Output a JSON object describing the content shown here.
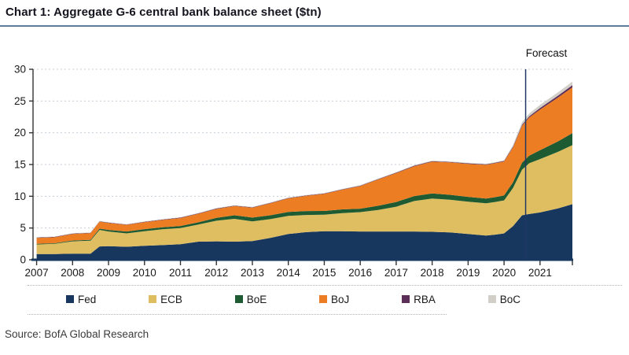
{
  "source": {
    "text": "Source: BofA Global Research"
  },
  "colors": {
    "title_rule": "#5f7d9e",
    "grid": "#c7ced6",
    "y_axis": "#333333",
    "x_axis": "#17375E",
    "tick": "#333333",
    "tick_label": "#1a1a1a",
    "forecast_line": "#1F3864",
    "forecast_text": "#111111"
  },
  "chart_data": {
    "type": "area",
    "stacked": true,
    "title": "Chart 1: Aggregate G-6 central bank balance sheet ($tn)",
    "xlabel": "",
    "ylabel": "",
    "xlim": [
      2006.9,
      2021.9
    ],
    "ylim": [
      0,
      30
    ],
    "yticks": [
      0,
      5,
      10,
      15,
      20,
      25,
      30
    ],
    "xticks": [
      2007,
      2008,
      2009,
      2010,
      2011,
      2012,
      2013,
      2014,
      2015,
      2016,
      2017,
      2018,
      2019,
      2020,
      2021
    ],
    "grid": "dashed-horizontal",
    "legend_position": "bottom",
    "forecast_line_x": 2020.6,
    "forecast_label": "Forecast",
    "x": [
      2007.0,
      2007.5,
      2008.0,
      2008.5,
      2008.75,
      2009.0,
      2009.5,
      2010.0,
      2010.5,
      2011.0,
      2011.5,
      2012.0,
      2012.5,
      2013.0,
      2013.5,
      2014.0,
      2014.5,
      2015.0,
      2015.5,
      2016.0,
      2016.5,
      2017.0,
      2017.5,
      2018.0,
      2018.5,
      2019.0,
      2019.5,
      2019.75,
      2020.0,
      2020.25,
      2020.5,
      2020.7,
      2021.0,
      2021.5,
      2021.9
    ],
    "series": [
      {
        "name": "Fed",
        "color": "#17375E",
        "values": [
          0.9,
          0.9,
          0.95,
          0.95,
          2.1,
          2.15,
          2.05,
          2.2,
          2.3,
          2.45,
          2.85,
          2.9,
          2.85,
          2.95,
          3.45,
          4.05,
          4.35,
          4.5,
          4.5,
          4.45,
          4.45,
          4.45,
          4.45,
          4.4,
          4.3,
          4.05,
          3.8,
          3.95,
          4.15,
          5.3,
          7.0,
          7.2,
          7.45,
          8.1,
          8.75
        ]
      },
      {
        "name": "ECB",
        "color": "#DFBE62",
        "values": [
          1.5,
          1.6,
          1.95,
          2.05,
          2.6,
          2.3,
          2.1,
          2.3,
          2.5,
          2.55,
          2.7,
          3.25,
          3.6,
          3.1,
          2.95,
          2.85,
          2.7,
          2.6,
          2.85,
          3.05,
          3.4,
          3.9,
          4.8,
          5.25,
          5.15,
          5.1,
          5.1,
          5.15,
          5.2,
          6.0,
          7.2,
          8.0,
          8.4,
          8.9,
          9.3
        ]
      },
      {
        "name": "BoE",
        "color": "#1E5B32",
        "values": [
          0.1,
          0.1,
          0.12,
          0.15,
          0.2,
          0.25,
          0.3,
          0.32,
          0.32,
          0.32,
          0.35,
          0.45,
          0.55,
          0.6,
          0.6,
          0.62,
          0.62,
          0.58,
          0.58,
          0.55,
          0.65,
          0.75,
          0.78,
          0.8,
          0.78,
          0.75,
          0.75,
          0.75,
          0.78,
          0.9,
          1.1,
          1.2,
          1.4,
          1.65,
          1.9
        ]
      },
      {
        "name": "BoJ",
        "color": "#ED7D22",
        "values": [
          0.95,
          0.95,
          1.05,
          1.05,
          1.1,
          1.1,
          1.05,
          1.1,
          1.15,
          1.25,
          1.35,
          1.4,
          1.45,
          1.55,
          1.9,
          2.15,
          2.4,
          2.7,
          3.1,
          3.55,
          4.15,
          4.55,
          4.7,
          5.0,
          5.1,
          5.2,
          5.3,
          5.35,
          5.35,
          5.5,
          5.8,
          6.0,
          6.4,
          6.9,
          7.2
        ]
      },
      {
        "name": "RBA",
        "color": "#5B2D59",
        "values": [
          0.06,
          0.06,
          0.05,
          0.05,
          0.05,
          0.05,
          0.05,
          0.06,
          0.06,
          0.07,
          0.07,
          0.07,
          0.07,
          0.06,
          0.06,
          0.06,
          0.06,
          0.06,
          0.06,
          0.06,
          0.06,
          0.07,
          0.08,
          0.08,
          0.08,
          0.08,
          0.08,
          0.08,
          0.09,
          0.12,
          0.16,
          0.2,
          0.24,
          0.3,
          0.35
        ]
      },
      {
        "name": "BoC",
        "color": "#D2CFC9",
        "values": [
          0.05,
          0.05,
          0.06,
          0.06,
          0.08,
          0.08,
          0.06,
          0.06,
          0.06,
          0.06,
          0.06,
          0.07,
          0.07,
          0.07,
          0.07,
          0.07,
          0.07,
          0.07,
          0.07,
          0.08,
          0.08,
          0.08,
          0.08,
          0.09,
          0.09,
          0.09,
          0.09,
          0.09,
          0.09,
          0.25,
          0.4,
          0.45,
          0.5,
          0.52,
          0.55
        ]
      }
    ]
  }
}
